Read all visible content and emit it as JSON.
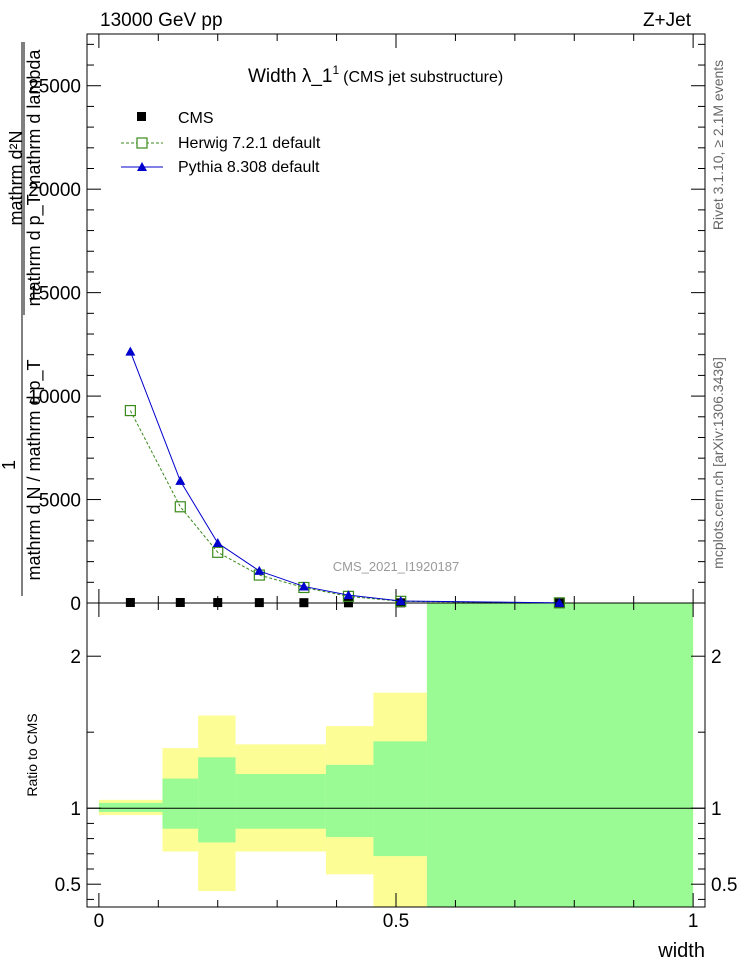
{
  "header": {
    "left": "13000 GeV pp",
    "right": "Z+Jet"
  },
  "side_labels": {
    "rivet": "Rivet 3.1.10, ≥ 2.1M events",
    "mcplots": "mcplots.cern.ch [arXiv:1306.3436]"
  },
  "chart_data": {
    "type": "line",
    "title": "Width λ_1",
    "title_superscript": "1",
    "subtitle": "(CMS jet substructure)",
    "watermark": "CMS_2021_I1920187",
    "ylabel": {
      "numerator_prefix": "1",
      "fraction_numerator": "mathrm d²N",
      "fraction_denominator": "mathrm d p_T mathrm d lambda",
      "denominator_line": "mathrm d N / mathrm d p_T"
    },
    "xlabel": "width",
    "x_tick_labels": [
      "0",
      "0.5",
      "1"
    ],
    "xlim": [
      -0.02,
      1.02
    ],
    "main": {
      "ylim": [
        0,
        27500
      ],
      "y_tick_labels": [
        "0",
        "5000",
        "10000",
        "15000",
        "20000",
        "25000"
      ],
      "y_tick_values": [
        0,
        5000,
        10000,
        15000,
        20000,
        25000
      ],
      "legend_position": "top-left",
      "series": [
        {
          "name": "CMS",
          "color": "#000000",
          "marker": "filled-square",
          "x": [
            0.053,
            0.137,
            0.2,
            0.27,
            0.345,
            0.42,
            0.508,
            0.775
          ],
          "y": [
            25,
            25,
            22,
            20,
            15,
            10,
            8,
            4
          ]
        },
        {
          "name": "Herwig 7.2.1 default",
          "color": "#3a8a1a",
          "marker": "open-square",
          "line": "dashed",
          "x": [
            0.053,
            0.137,
            0.2,
            0.27,
            0.345,
            0.42,
            0.508,
            0.775
          ],
          "y": [
            9300,
            4650,
            2450,
            1350,
            750,
            320,
            80,
            8
          ]
        },
        {
          "name": "Pythia 8.308 default",
          "color": "#0000cc",
          "marker": "filled-triangle",
          "line": "solid",
          "x": [
            0.053,
            0.137,
            0.2,
            0.27,
            0.345,
            0.42,
            0.508,
            0.775
          ],
          "y": [
            12150,
            5900,
            2900,
            1550,
            800,
            380,
            95,
            8
          ]
        }
      ]
    },
    "ratio": {
      "ylabel": "Ratio to CMS",
      "ylim": [
        0.35,
        2.35
      ],
      "y_tick_labels": [
        "0.5",
        "1",
        "2"
      ],
      "y_tick_values": [
        0.5,
        1,
        2
      ],
      "reference_line": 1,
      "band_colors": {
        "outer": "#fdfd96",
        "inner": "#9afb94"
      },
      "bins": [
        {
          "x0": 0.0,
          "x1": 0.107,
          "outer": [
            0.955,
            1.055
          ],
          "inner": [
            0.975,
            1.035
          ]
        },
        {
          "x0": 0.107,
          "x1": 0.167,
          "outer": [
            0.715,
            1.395
          ],
          "inner": [
            0.865,
            1.195
          ]
        },
        {
          "x0": 0.167,
          "x1": 0.23,
          "outer": [
            0.455,
            1.61
          ],
          "inner": [
            0.775,
            1.335
          ]
        },
        {
          "x0": 0.23,
          "x1": 0.382,
          "outer": [
            0.715,
            1.42
          ],
          "inner": [
            0.865,
            1.225
          ]
        },
        {
          "x0": 0.382,
          "x1": 0.462,
          "outer": [
            0.565,
            1.54
          ],
          "inner": [
            0.81,
            1.285
          ]
        },
        {
          "x0": 0.462,
          "x1": 0.552,
          "outer": [
            0.35,
            1.76
          ],
          "inner": [
            0.685,
            1.44
          ]
        },
        {
          "x0": 0.552,
          "x1": 1.0,
          "outer": [
            0.35,
            2.35
          ],
          "inner": [
            0.35,
            2.35
          ]
        }
      ]
    }
  }
}
